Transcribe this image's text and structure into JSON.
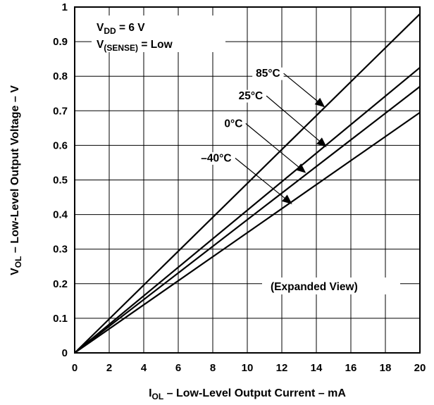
{
  "chart_data": {
    "type": "line",
    "title": "",
    "xlabel": {
      "main": "I",
      "sub": "OL",
      "rest": " – Low-Level Output Current – mA"
    },
    "ylabel": {
      "main": "V",
      "sub": "OL",
      "rest": " – Low-Level Output Voltage – V"
    },
    "xlim": [
      0,
      20
    ],
    "ylim": [
      0,
      1
    ],
    "xticks": [
      "0",
      "2",
      "4",
      "6",
      "8",
      "10",
      "12",
      "14",
      "16",
      "18",
      "20"
    ],
    "yticks": [
      "0",
      "0.1",
      "0.2",
      "0.3",
      "0.4",
      "0.5",
      "0.6",
      "0.7",
      "0.8",
      "0.9",
      "1"
    ],
    "grid": true,
    "series": [
      {
        "name": "85°C",
        "x": [
          0,
          20
        ],
        "y": [
          0,
          0.98
        ],
        "label_at": [
          11.2,
          0.8
        ],
        "arrow_to": [
          14.5,
          0.71
        ]
      },
      {
        "name": "25°C",
        "x": [
          0,
          20
        ],
        "y": [
          0,
          0.825
        ],
        "label_at": [
          10.2,
          0.735
        ],
        "arrow_to": [
          14.6,
          0.595
        ]
      },
      {
        "name": "0°C",
        "x": [
          0,
          20
        ],
        "y": [
          0,
          0.77
        ],
        "label_at": [
          9.2,
          0.655
        ],
        "arrow_to": [
          13.4,
          0.52
        ]
      },
      {
        "name": "–40°C",
        "x": [
          0,
          20
        ],
        "y": [
          0,
          0.695
        ],
        "label_at": [
          8.2,
          0.555
        ],
        "arrow_to": [
          12.6,
          0.43
        ]
      }
    ],
    "annotations": {
      "conditions": [
        {
          "main": "V",
          "sub": "DD",
          "rest": " = 6 V"
        },
        {
          "main": "V",
          "sub": "(SENSE)",
          "rest": " = Low"
        }
      ],
      "view_note": "(Expanded View)"
    }
  }
}
